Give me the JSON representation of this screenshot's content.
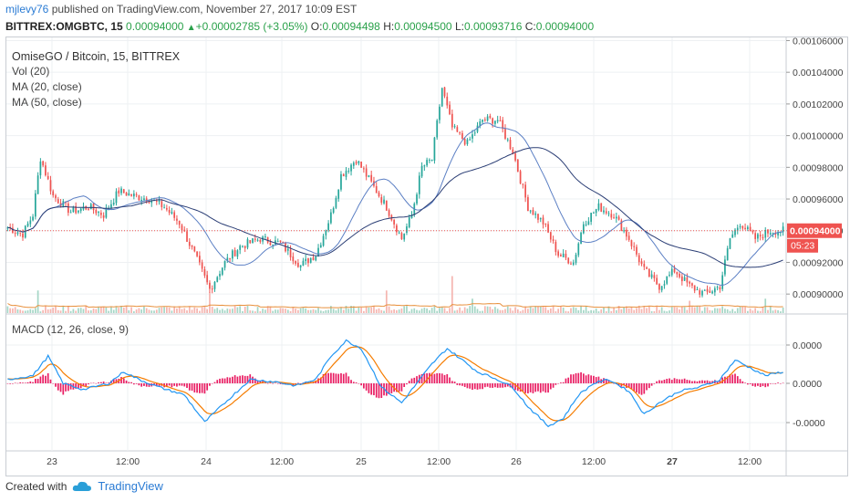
{
  "header": {
    "user": "mjlevy76",
    "published": "published on TradingView.com, November 27, 2017 10:09 EST",
    "symbol": "BITTREX:OMGBTC, 15",
    "last": "0.00094000",
    "change_arrow": "▲",
    "change": "+0.00002785 (+3.05%)",
    "o_label": "O:",
    "o": "0.00094498",
    "h_label": "H:",
    "h": "0.00094500",
    "l_label": "L:",
    "l": "0.00093716",
    "c_label": "C:",
    "c": "0.00094000"
  },
  "legend": {
    "title": "OmiseGO / Bitcoin, 15, BITTREX",
    "vol": "Vol (20)",
    "ma20": "MA (20, close)",
    "ma50": "MA (50, close)",
    "macd": "MACD (12, 26, close, 9)"
  },
  "price_tag": "0.00094000",
  "time_tag": "05:23",
  "footer": {
    "created": "Created with",
    "brand": "TradingView",
    "logo_icon": "tradingview-cloud-icon"
  },
  "colors": {
    "up": "#26a69a",
    "down": "#ef5350",
    "ma20": "#5b7fc4",
    "ma50": "#2b3e75",
    "macd": "#2196f3",
    "signal": "#f57c00",
    "hist_pos": "#e91e63",
    "hist_neg": "#e91e63",
    "pricetag": "#ef5350",
    "vol_up": "#a5d6c6",
    "vol_down": "#f5b5b0",
    "vol_ma": "#e8903c"
  },
  "chart_data": {
    "type": "candlestick",
    "price_axis_ticks": [
      "0.00106000",
      "0.00104000",
      "0.00102000",
      "0.00100000",
      "0.00098000",
      "0.00096000",
      "0.00094000",
      "0.00092000",
      "0.00090000"
    ],
    "price_range": [
      0.000888,
      0.001062
    ],
    "macd_axis_ticks": [
      "0.0000",
      "0.0000",
      "-0.0000"
    ],
    "x_ticks": [
      "23",
      "12:00",
      "24",
      "12:00",
      "25",
      "12:00",
      "26",
      "12:00",
      "27",
      "12:00"
    ],
    "close_keyframes": [
      [
        0,
        0.000942
      ],
      [
        6,
        0.000938
      ],
      [
        10,
        0.00095
      ],
      [
        13,
        0.000986
      ],
      [
        18,
        0.000962
      ],
      [
        25,
        0.000952
      ],
      [
        32,
        0.000955
      ],
      [
        38,
        0.00095
      ],
      [
        44,
        0.000965
      ],
      [
        50,
        0.000962
      ],
      [
        56,
        0.00096
      ],
      [
        62,
        0.000955
      ],
      [
        68,
        0.000945
      ],
      [
        74,
        0.000925
      ],
      [
        80,
        0.000903
      ],
      [
        86,
        0.00092
      ],
      [
        92,
        0.00093
      ],
      [
        100,
        0.000935
      ],
      [
        108,
        0.000932
      ],
      [
        116,
        0.000918
      ],
      [
        122,
        0.000925
      ],
      [
        128,
        0.00095
      ],
      [
        132,
        0.000975
      ],
      [
        138,
        0.000985
      ],
      [
        144,
        0.00097
      ],
      [
        150,
        0.000955
      ],
      [
        156,
        0.000935
      ],
      [
        160,
        0.00095
      ],
      [
        164,
        0.00098
      ],
      [
        168,
        0.000985
      ],
      [
        172,
        0.00103
      ],
      [
        176,
        0.001005
      ],
      [
        182,
        0.000995
      ],
      [
        188,
        0.00101
      ],
      [
        194,
        0.00101
      ],
      [
        200,
        0.00099
      ],
      [
        206,
        0.000955
      ],
      [
        212,
        0.000945
      ],
      [
        218,
        0.000925
      ],
      [
        224,
        0.00092
      ],
      [
        228,
        0.000945
      ],
      [
        234,
        0.000955
      ],
      [
        240,
        0.00095
      ],
      [
        246,
        0.000935
      ],
      [
        252,
        0.000915
      ],
      [
        258,
        0.000905
      ],
      [
        264,
        0.000915
      ],
      [
        270,
        0.000905
      ],
      [
        276,
        0.0009
      ],
      [
        282,
        0.000905
      ],
      [
        286,
        0.000935
      ],
      [
        290,
        0.000945
      ],
      [
        296,
        0.000935
      ],
      [
        302,
        0.00094
      ],
      [
        307,
        0.00094
      ]
    ],
    "volume_spikes": [
      [
        12,
        0.55
      ],
      [
        80,
        0.5
      ],
      [
        150,
        0.55
      ],
      [
        176,
        0.9
      ],
      [
        184,
        0.35
      ],
      [
        270,
        0.3
      ],
      [
        300,
        0.35
      ]
    ],
    "macd_keyframes": [
      [
        0,
        0.5
      ],
      [
        10,
        1.0
      ],
      [
        16,
        3.5
      ],
      [
        22,
        0.0
      ],
      [
        30,
        -0.8
      ],
      [
        40,
        0.0
      ],
      [
        46,
        1.5
      ],
      [
        52,
        0.5
      ],
      [
        60,
        -0.5
      ],
      [
        70,
        -1.5
      ],
      [
        78,
        -5.0
      ],
      [
        86,
        -2.5
      ],
      [
        96,
        0.5
      ],
      [
        106,
        0.2
      ],
      [
        114,
        -0.3
      ],
      [
        122,
        0.5
      ],
      [
        128,
        3.5
      ],
      [
        134,
        5.5
      ],
      [
        140,
        4.5
      ],
      [
        148,
        -0.5
      ],
      [
        156,
        -2.5
      ],
      [
        162,
        0.0
      ],
      [
        168,
        2.5
      ],
      [
        174,
        4.5
      ],
      [
        180,
        3.0
      ],
      [
        186,
        1.5
      ],
      [
        194,
        0.5
      ],
      [
        200,
        -0.5
      ],
      [
        206,
        -3.0
      ],
      [
        214,
        -5.5
      ],
      [
        220,
        -4.5
      ],
      [
        226,
        -1.5
      ],
      [
        232,
        0.0
      ],
      [
        238,
        0.5
      ],
      [
        246,
        -1.0
      ],
      [
        252,
        -4.0
      ],
      [
        258,
        -2.5
      ],
      [
        266,
        -1.0
      ],
      [
        274,
        -0.5
      ],
      [
        282,
        0.5
      ],
      [
        288,
        3.0
      ],
      [
        294,
        2.0
      ],
      [
        300,
        1.0
      ],
      [
        307,
        1.5
      ]
    ]
  }
}
